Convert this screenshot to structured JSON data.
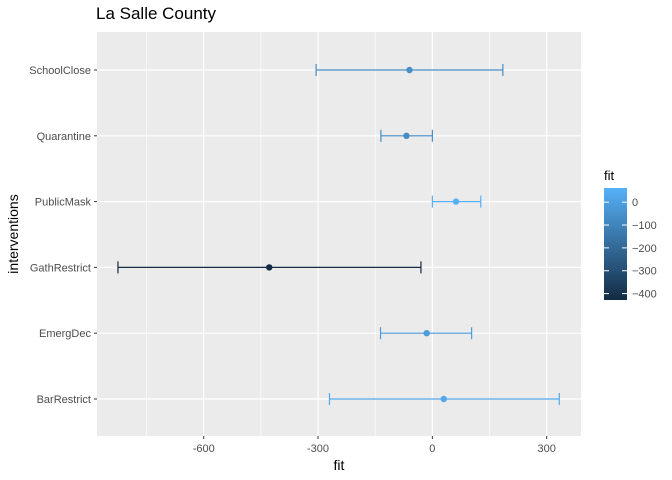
{
  "chart_data": {
    "type": "scatter",
    "subtype": "point-range (horizontal error bars)",
    "title": "La Salle County",
    "xlabel": "fit",
    "ylabel": "interventions",
    "xlim": [
      -880,
      390
    ],
    "xticks": [
      -600,
      -300,
      0,
      300
    ],
    "xtick_labels": [
      "-600",
      "-300",
      "0",
      "300"
    ],
    "categories": [
      "SchoolClose",
      "Quarantine",
      "PublicMask",
      "GathRestrict",
      "EmergDec",
      "BarRestrict"
    ],
    "points": [
      {
        "intervention": "SchoolClose",
        "fit": -60,
        "lower": -305,
        "upper": 185
      },
      {
        "intervention": "Quarantine",
        "fit": -68,
        "lower": -135,
        "upper": 0
      },
      {
        "intervention": "PublicMask",
        "fit": 62,
        "lower": 0,
        "upper": 127
      },
      {
        "intervention": "GathRestrict",
        "fit": -428,
        "lower": -825,
        "upper": -30
      },
      {
        "intervention": "EmergDec",
        "fit": -15,
        "lower": -136,
        "upper": 103
      },
      {
        "intervention": "BarRestrict",
        "fit": 30,
        "lower": -270,
        "upper": 333
      }
    ],
    "grid": true,
    "legend": {
      "title": "fit",
      "position": "right",
      "type": "colorbar",
      "range": [
        -428,
        62
      ],
      "ticks": [
        0,
        -100,
        -200,
        -300,
        -400
      ],
      "tick_labels": [
        "0",
        "−100",
        "−200",
        "−300",
        "−400"
      ],
      "low_color": "#132B43",
      "high_color": "#56B1F7"
    },
    "panel_background": "#EBEBEB",
    "gridline_color": "#FFFFFF"
  }
}
